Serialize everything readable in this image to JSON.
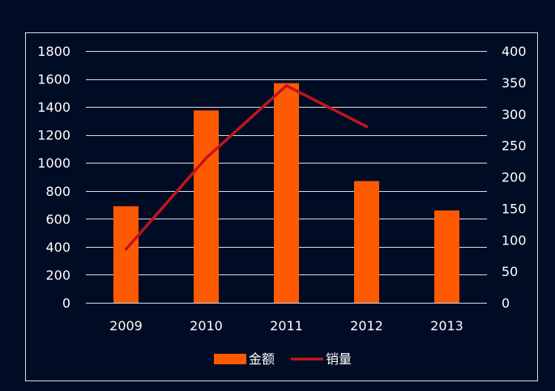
{
  "chart_data": {
    "type": "bar",
    "categories": [
      "2009",
      "2010",
      "2011",
      "2012",
      "2013"
    ],
    "series": [
      {
        "name": "金额",
        "type": "bar",
        "axis": "left",
        "color": "#ff5a00",
        "values": [
          690,
          1375,
          1570,
          870,
          660
        ]
      },
      {
        "name": "销量",
        "type": "line",
        "axis": "right",
        "color": "#c0151e",
        "values": [
          85,
          230,
          345,
          280,
          null
        ]
      }
    ],
    "y_left": {
      "min": 0,
      "max": 1800,
      "ticks": [
        "0",
        "200",
        "400",
        "600",
        "800",
        "1000",
        "1200",
        "1400",
        "1600",
        "1800"
      ]
    },
    "y_right": {
      "min": 0,
      "max": 400,
      "ticks": [
        "0",
        "50",
        "100",
        "150",
        "200",
        "250",
        "300",
        "350",
        "400"
      ]
    },
    "grid": true,
    "legend": "bottom",
    "text_color": "#ffffff",
    "background": "#000c24"
  }
}
